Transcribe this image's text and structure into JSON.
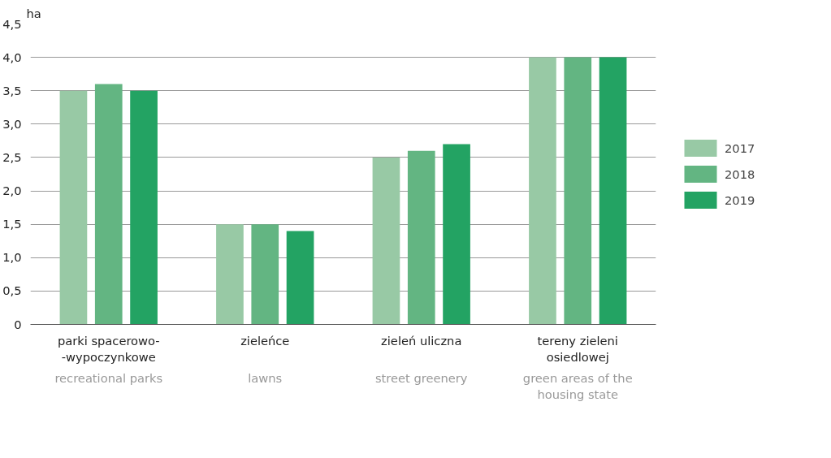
{
  "chart_data": {
    "type": "bar",
    "ylabel": "ha",
    "categories": [
      "parki spacerowo-\n-wypoczynkowe",
      "zieleńce",
      "zieleń uliczna",
      "tereny zieleni\nosiedlowej"
    ],
    "annotations": [
      "recreational parks",
      "lawns",
      "street greenery",
      "green areas of the\nhousing state"
    ],
    "series": [
      {
        "name": "2017",
        "color": "#98c9a5",
        "values": [
          3.5,
          1.5,
          2.5,
          4.0
        ]
      },
      {
        "name": "2018",
        "color": "#63b582",
        "values": [
          3.6,
          1.5,
          2.6,
          4.0
        ]
      },
      {
        "name": "2019",
        "color": "#23a363",
        "values": [
          3.5,
          1.4,
          2.7,
          4.0
        ]
      }
    ],
    "ylim": [
      0,
      4.5
    ],
    "yticks": [
      {
        "value": 0,
        "label": "0"
      },
      {
        "value": 0.5,
        "label": "0,5"
      },
      {
        "value": 1,
        "label": "1,0"
      },
      {
        "value": 1.5,
        "label": "1,5"
      },
      {
        "value": 2,
        "label": "2,0"
      },
      {
        "value": 2.5,
        "label": "2,5"
      },
      {
        "value": 3,
        "label": "3,0"
      },
      {
        "value": 3.5,
        "label": "3,5"
      },
      {
        "value": 4,
        "label": "4,0"
      },
      {
        "value": 4.5,
        "label": "4,5"
      }
    ],
    "grid": "y",
    "legend": "right"
  }
}
